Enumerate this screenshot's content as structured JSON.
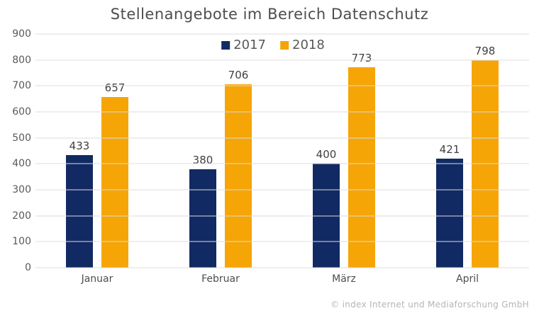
{
  "chart_data": {
    "type": "bar",
    "title": "Stellenangebote im Bereich Datenschutz",
    "categories": [
      "Januar",
      "Februar",
      "März",
      "April"
    ],
    "series": [
      {
        "name": "2017",
        "color": "#122a63",
        "values": [
          433,
          380,
          400,
          421
        ]
      },
      {
        "name": "2018",
        "color": "#f5a506",
        "values": [
          657,
          706,
          773,
          798
        ]
      }
    ],
    "xlabel": "",
    "ylabel": "",
    "ylim": [
      0,
      900
    ],
    "ytick_step": 100,
    "grid": "horizontal",
    "legend_position": "top-center",
    "gridline_color": "#dcdcdc"
  },
  "footer": {
    "credit": "© index Internet und Mediaforschung GmbH"
  }
}
